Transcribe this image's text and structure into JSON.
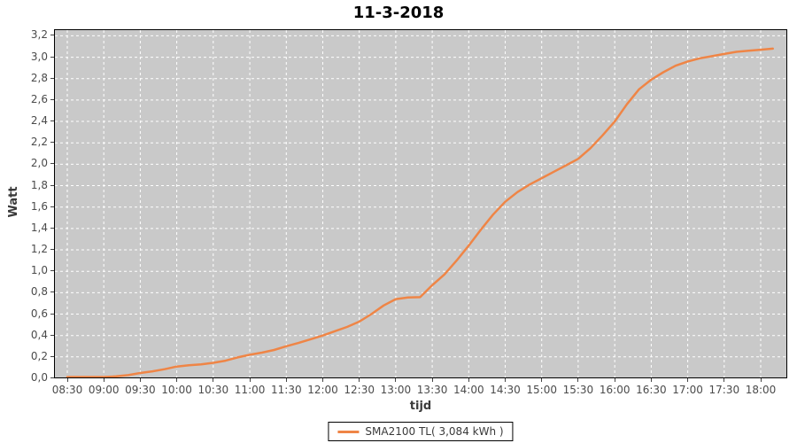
{
  "title": "11-3-2018",
  "colors": {
    "plot_background": "#c9c9c9",
    "grid": "#ffffff",
    "axis_border": "#000000",
    "tick_text": "#4b4b4b",
    "series_orange": "#ef8546"
  },
  "chart_data": {
    "type": "line",
    "title": "11-3-2018",
    "xlabel": "tijd",
    "ylabel": "Watt",
    "grid": true,
    "legend_position": "bottom",
    "ylim": [
      0.0,
      3.2
    ],
    "y_tick_step": 0.2,
    "y_tick_labels": [
      "0,0",
      "0,2",
      "0,4",
      "0,6",
      "0,8",
      "1,0",
      "1,2",
      "1,4",
      "1,6",
      "1,8",
      "2,0",
      "2,2",
      "2,4",
      "2,6",
      "2,8",
      "3,0",
      "3,2"
    ],
    "x_tick_labels": [
      "08:30",
      "09:00",
      "09:30",
      "10:00",
      "10:30",
      "11:00",
      "11:30",
      "12:00",
      "12:30",
      "13:00",
      "13:30",
      "14:00",
      "14:30",
      "15:00",
      "15:30",
      "16:00",
      "16:30",
      "17:00",
      "17:30",
      "18:00"
    ],
    "series": [
      {
        "name": "SMA2100 TL( 3,084 kWh )",
        "color": "#ef8546",
        "points": [
          [
            "08:30",
            0.0
          ],
          [
            "08:40",
            0.002
          ],
          [
            "08:50",
            0.005
          ],
          [
            "09:00",
            0.01
          ],
          [
            "09:10",
            0.018
          ],
          [
            "09:20",
            0.03
          ],
          [
            "09:30",
            0.05
          ],
          [
            "09:40",
            0.065
          ],
          [
            "09:50",
            0.085
          ],
          [
            "10:00",
            0.11
          ],
          [
            "10:10",
            0.122
          ],
          [
            "10:20",
            0.13
          ],
          [
            "10:30",
            0.145
          ],
          [
            "10:40",
            0.165
          ],
          [
            "10:50",
            0.195
          ],
          [
            "11:00",
            0.22
          ],
          [
            "11:10",
            0.24
          ],
          [
            "11:20",
            0.265
          ],
          [
            "11:30",
            0.3
          ],
          [
            "11:40",
            0.33
          ],
          [
            "11:50",
            0.365
          ],
          [
            "12:00",
            0.4
          ],
          [
            "12:10",
            0.44
          ],
          [
            "12:20",
            0.48
          ],
          [
            "12:30",
            0.53
          ],
          [
            "12:40",
            0.6
          ],
          [
            "12:50",
            0.68
          ],
          [
            "13:00",
            0.74
          ],
          [
            "13:10",
            0.755
          ],
          [
            "13:20",
            0.758
          ],
          [
            "13:30",
            0.87
          ],
          [
            "13:40",
            0.97
          ],
          [
            "13:50",
            1.1
          ],
          [
            "14:00",
            1.24
          ],
          [
            "14:10",
            1.39
          ],
          [
            "14:20",
            1.53
          ],
          [
            "14:30",
            1.65
          ],
          [
            "14:40",
            1.74
          ],
          [
            "14:50",
            1.81
          ],
          [
            "15:00",
            1.87
          ],
          [
            "15:10",
            1.93
          ],
          [
            "15:20",
            1.99
          ],
          [
            "15:30",
            2.05
          ],
          [
            "15:40",
            2.15
          ],
          [
            "15:50",
            2.27
          ],
          [
            "16:00",
            2.4
          ],
          [
            "16:10",
            2.56
          ],
          [
            "16:20",
            2.7
          ],
          [
            "16:30",
            2.79
          ],
          [
            "16:40",
            2.86
          ],
          [
            "16:50",
            2.92
          ],
          [
            "17:00",
            2.96
          ],
          [
            "17:10",
            2.99
          ],
          [
            "17:20",
            3.01
          ],
          [
            "17:30",
            3.03
          ],
          [
            "17:40",
            3.05
          ],
          [
            "17:50",
            3.06
          ],
          [
            "18:00",
            3.07
          ],
          [
            "18:10",
            3.08
          ]
        ]
      }
    ],
    "legend": {
      "label": "SMA2100 TL( 3,084 kWh )"
    }
  }
}
